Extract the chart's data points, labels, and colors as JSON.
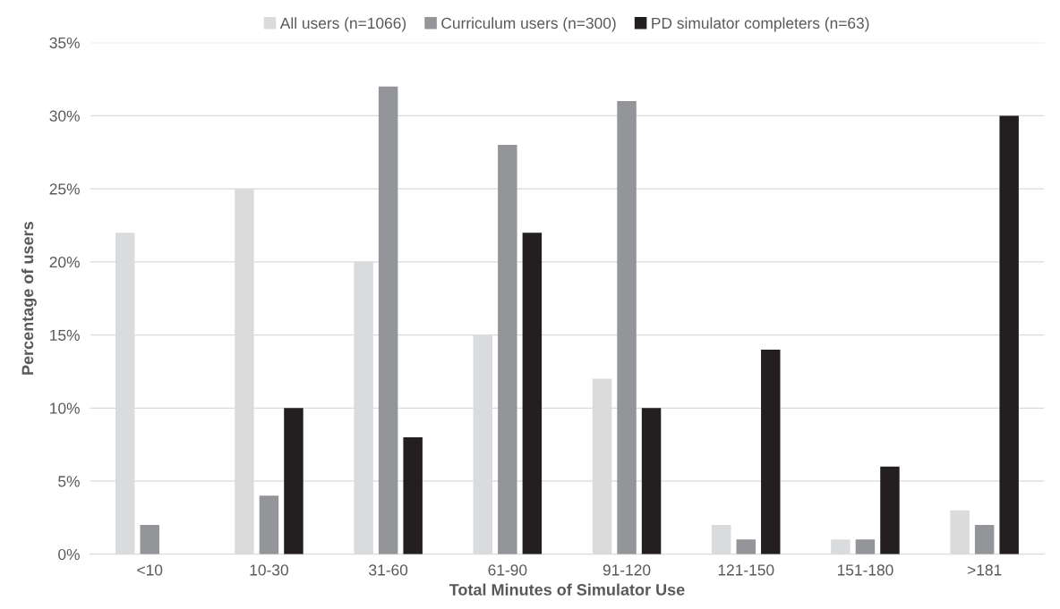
{
  "chart_data": {
    "type": "bar",
    "xlabel": "Total Minutes of Simulator Use",
    "ylabel": "Percentage of users",
    "categories": [
      "<10",
      "10-30",
      "31-60",
      "61-90",
      "91-120",
      "121-150",
      "151-180",
      ">181"
    ],
    "series": [
      {
        "name": "All users (n=1066)",
        "color": "#dadbdc",
        "values": [
          22,
          25,
          20,
          15,
          12,
          2,
          1,
          3
        ]
      },
      {
        "name": "Curriculum users (n=300)",
        "color": "#939598",
        "values": [
          2,
          4,
          32,
          28,
          31,
          1,
          1,
          2
        ]
      },
      {
        "name": "PD simulator completers (n=63)",
        "color": "#231f20",
        "values": [
          0,
          10,
          8,
          22,
          10,
          14,
          6,
          30
        ]
      }
    ],
    "ylim": [
      0,
      35
    ],
    "yticks": [
      {
        "value": 0,
        "label": "0%"
      },
      {
        "value": 5,
        "label": "5%"
      },
      {
        "value": 10,
        "label": "10%"
      },
      {
        "value": 15,
        "label": "15%"
      },
      {
        "value": 20,
        "label": "20%"
      },
      {
        "value": 25,
        "label": "25%"
      },
      {
        "value": 30,
        "label": "30%"
      },
      {
        "value": 35,
        "label": "35%"
      }
    ],
    "grid": "y",
    "legend": "top"
  }
}
